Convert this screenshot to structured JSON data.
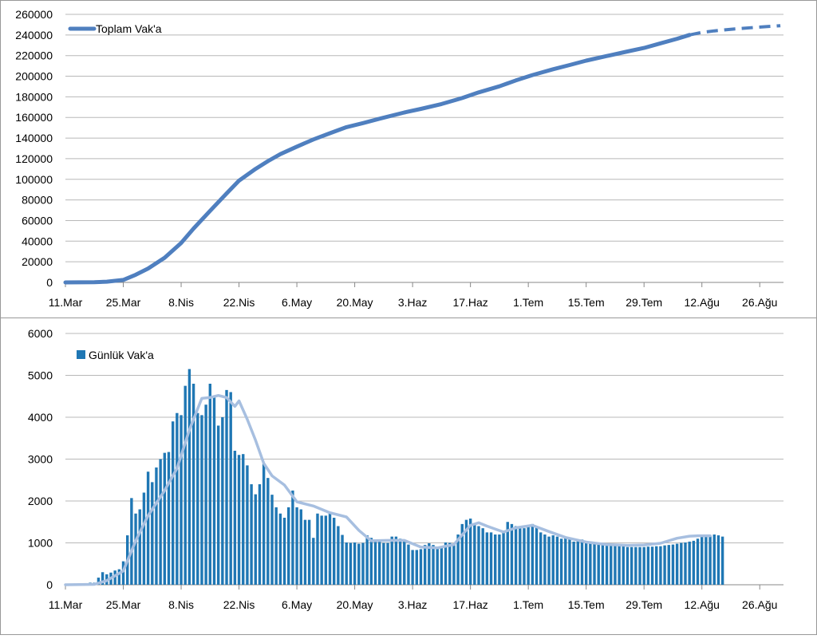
{
  "charts": [
    {
      "type": "line",
      "legend": {
        "label": "Toplam Vak'a",
        "position": "top-left"
      },
      "x_tick_labels": [
        "11.Mar",
        "25.Mar",
        "8.Nis",
        "22.Nis",
        "6.May",
        "20.May",
        "3.Haz",
        "17.Haz",
        "1.Tem",
        "15.Tem",
        "29.Tem",
        "12.Ağu",
        "26.Ağu"
      ],
      "y_tick_labels": [
        "0",
        "20000",
        "40000",
        "60000",
        "80000",
        "100000",
        "120000",
        "140000",
        "160000",
        "180000",
        "200000",
        "220000",
        "240000",
        "260000"
      ],
      "ylim": [
        0,
        260000
      ],
      "grid": "horizontal",
      "series_color": "#4f7fbf",
      "actual_points": [
        [
          "11.Mar",
          0
        ],
        [
          "18.Mar",
          200
        ],
        [
          "21.Mar",
          700
        ],
        [
          "25.Mar",
          2400
        ],
        [
          "28.Mar",
          7400
        ],
        [
          "31.Mar",
          13500
        ],
        [
          "4.Nis",
          23900
        ],
        [
          "8.Nis",
          38200
        ],
        [
          "11.Nis",
          52200
        ],
        [
          "15.Nis",
          69400
        ],
        [
          "19.Nis",
          86300
        ],
        [
          "22.Nis",
          98700
        ],
        [
          "26.Nis",
          110100
        ],
        [
          "29.Nis",
          117600
        ],
        [
          "2.May",
          124400
        ],
        [
          "6.May",
          131700
        ],
        [
          "10.May",
          138700
        ],
        [
          "14.May",
          144700
        ],
        [
          "18.May",
          150600
        ],
        [
          "22.May",
          154500
        ],
        [
          "26.May",
          158800
        ],
        [
          "1.Haz",
          164800
        ],
        [
          "5.Haz",
          168300
        ],
        [
          "10.Haz",
          173000
        ],
        [
          "15.Haz",
          178800
        ],
        [
          "19.Haz",
          184300
        ],
        [
          "24.Haz",
          190200
        ],
        [
          "28.Haz",
          195900
        ],
        [
          "2.Tem",
          201100
        ],
        [
          "7.Tem",
          206800
        ],
        [
          "11.Tem",
          210900
        ],
        [
          "15.Tem",
          215100
        ],
        [
          "20.Tem",
          219600
        ],
        [
          "25.Tem",
          224000
        ],
        [
          "29.Tem",
          227400
        ],
        [
          "2.Ağu",
          231900
        ],
        [
          "6.Ağu",
          236300
        ],
        [
          "9.Ağu",
          240000
        ]
      ],
      "projected_points": [
        [
          "9.Ağu",
          240000
        ],
        [
          "12.Ağu",
          242500
        ],
        [
          "15.Ağu",
          244000
        ],
        [
          "20.Ağu",
          245900
        ],
        [
          "25.Ağu",
          247400
        ],
        [
          "29.Ağu",
          248500
        ],
        [
          "31.Ağu",
          249000
        ]
      ]
    },
    {
      "type": "bar",
      "legend": {
        "label": "Günlük Vak'a",
        "position": "top-left"
      },
      "x_tick_labels": [
        "11.Mar",
        "25.Mar",
        "8.Nis",
        "22.Nis",
        "6.May",
        "20.May",
        "3.Haz",
        "17.Haz",
        "1.Tem",
        "15.Tem",
        "29.Tem",
        "12.Ağu",
        "26.Ağu"
      ],
      "y_tick_labels": [
        "0",
        "1000",
        "2000",
        "3000",
        "4000",
        "5000",
        "6000"
      ],
      "ylim": [
        0,
        6000
      ],
      "grid": "horizontal",
      "bar_color": "#1f77b4",
      "moving_average_color": "#a7bfe0",
      "start_date": "11.Mar",
      "daily_values": [
        1,
        0,
        4,
        0,
        12,
        11,
        50,
        50,
        170,
        300,
        250,
        290,
        340,
        370,
        560,
        1180,
        2070,
        1700,
        1800,
        2200,
        2700,
        2450,
        2800,
        3000,
        3150,
        3170,
        3900,
        4100,
        4050,
        4750,
        5150,
        4800,
        4100,
        4050,
        4300,
        4800,
        4500,
        3800,
        4000,
        4650,
        4600,
        3200,
        3100,
        3120,
        2850,
        2400,
        2160,
        2400,
        2900,
        2550,
        2150,
        1850,
        1700,
        1600,
        1850,
        2250,
        1850,
        1800,
        1550,
        1550,
        1120,
        1700,
        1650,
        1650,
        1700,
        1600,
        1400,
        1190,
        1010,
        1000,
        1010,
        980,
        1000,
        1180,
        1120,
        1050,
        1050,
        1000,
        1000,
        1150,
        1150,
        1100,
        1050,
        960,
        830,
        830,
        850,
        950,
        990,
        950,
        860,
        900,
        1010,
        1000,
        950,
        1200,
        1450,
        1550,
        1580,
        1450,
        1400,
        1350,
        1250,
        1250,
        1200,
        1200,
        1250,
        1500,
        1450,
        1400,
        1350,
        1350,
        1400,
        1450,
        1380,
        1250,
        1200,
        1150,
        1180,
        1150,
        1100,
        1120,
        1100,
        1030,
        1050,
        1080,
        1030,
        1020,
        1010,
        1000,
        990,
        980,
        960,
        950,
        940,
        920,
        900,
        900,
        900,
        900,
        900,
        910,
        910,
        920,
        920,
        940,
        950,
        960,
        980,
        1000,
        1010,
        1030,
        1050,
        1100,
        1150,
        1180,
        1170,
        1200,
        1180,
        1150
      ],
      "moving_average": [
        [
          "11.Mar",
          0
        ],
        [
          "18.Mar",
          10
        ],
        [
          "21.Mar",
          100
        ],
        [
          "25.Mar",
          330
        ],
        [
          "28.Mar",
          1050
        ],
        [
          "31.Mar",
          1650
        ],
        [
          "4.Nis",
          2250
        ],
        [
          "7.Nis",
          2780
        ],
        [
          "10.Nis",
          3700
        ],
        [
          "13.Nis",
          4450
        ],
        [
          "15.Nis",
          4470
        ],
        [
          "17.Nis",
          4520
        ],
        [
          "19.Nis",
          4470
        ],
        [
          "21.Nis",
          4260
        ],
        [
          "22.Nis",
          4390
        ],
        [
          "24.Nis",
          3950
        ],
        [
          "26.Nis",
          3450
        ],
        [
          "28.Nis",
          2900
        ],
        [
          "30.Nis",
          2600
        ],
        [
          "3.May",
          2380
        ],
        [
          "6.May",
          1980
        ],
        [
          "10.May",
          1880
        ],
        [
          "14.May",
          1720
        ],
        [
          "18.May",
          1620
        ],
        [
          "21.May",
          1300
        ],
        [
          "24.May",
          1050
        ],
        [
          "28.May",
          1060
        ],
        [
          "1.Haz",
          1060
        ],
        [
          "5.Haz",
          900
        ],
        [
          "9.Haz",
          880
        ],
        [
          "13.Haz",
          960
        ],
        [
          "17.Haz",
          1420
        ],
        [
          "19.Haz",
          1480
        ],
        [
          "21.Haz",
          1400
        ],
        [
          "25.Haz",
          1260
        ],
        [
          "28.Haz",
          1360
        ],
        [
          "2.Tem",
          1420
        ],
        [
          "6.Tem",
          1270
        ],
        [
          "10.Tem",
          1130
        ],
        [
          "15.Tem",
          1020
        ],
        [
          "20.Tem",
          960
        ],
        [
          "25.Tem",
          940
        ],
        [
          "29.Tem",
          950
        ],
        [
          "2.Ağu",
          990
        ],
        [
          "6.Ağu",
          1110
        ],
        [
          "9.Ağu",
          1160
        ],
        [
          "11.Ağu",
          1170
        ],
        [
          "14.Ağu",
          1170
        ]
      ]
    }
  ]
}
